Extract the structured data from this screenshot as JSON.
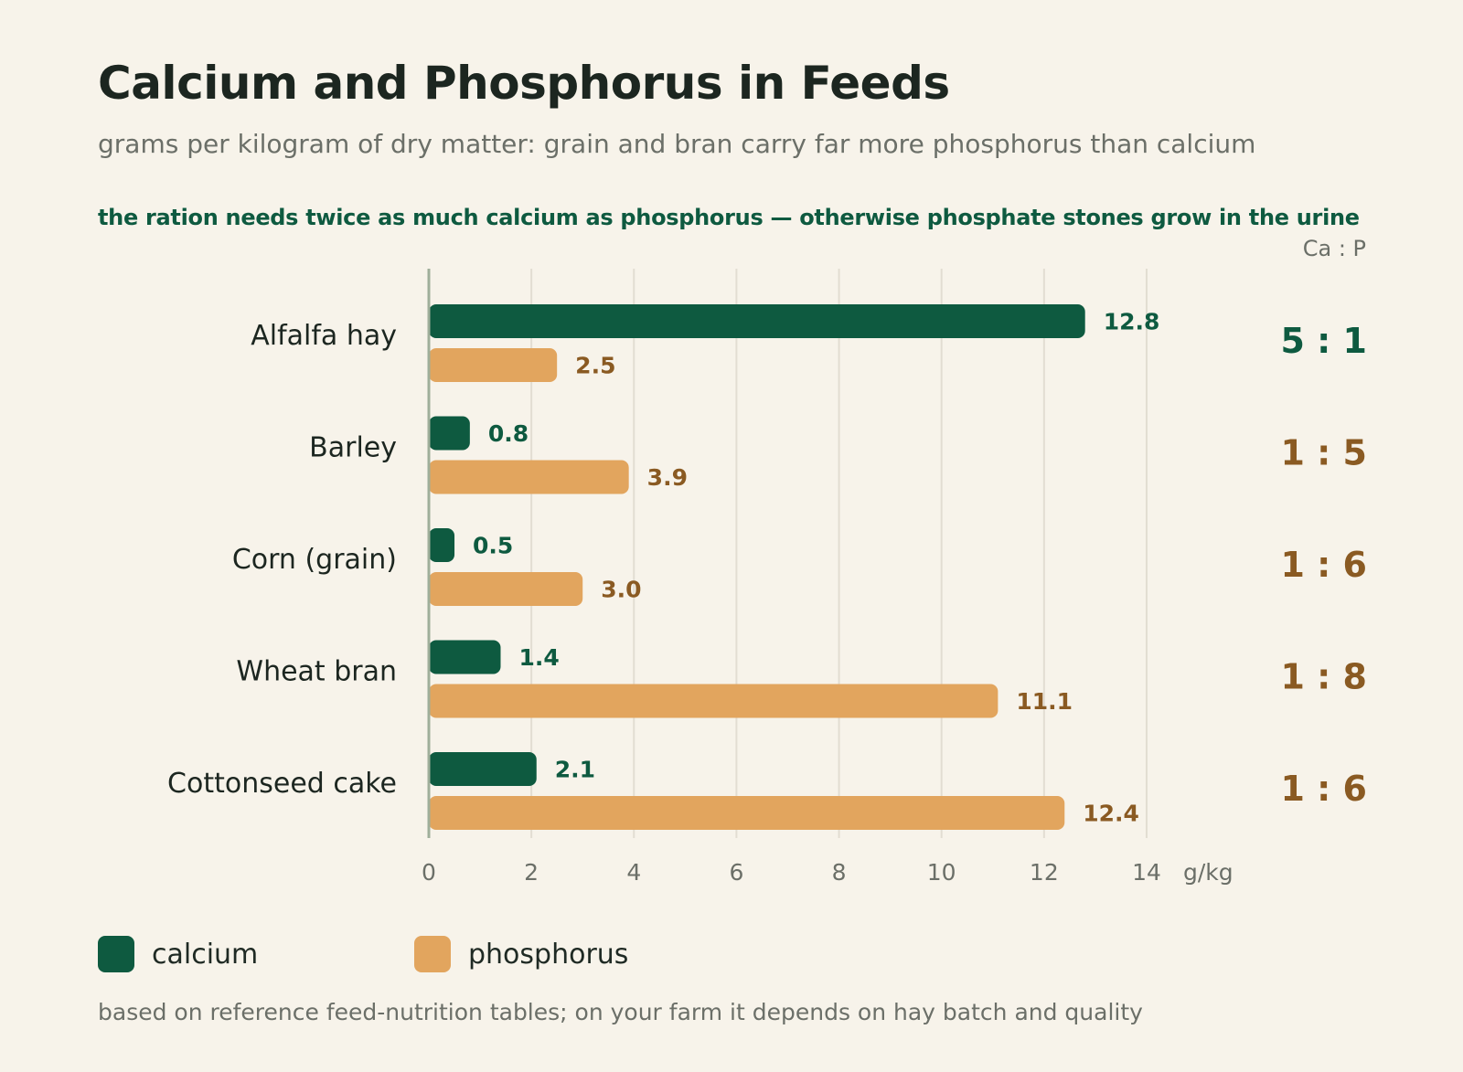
{
  "title": "Calcium and Phosphorus in Feeds",
  "subtitle": "grams per kilogram of dry matter: grain and bran carry far more phosphorus than calcium",
  "annotation": "the ration needs twice as much calcium as phosphorus — otherwise phosphate stones grow in the urine",
  "ratio_header": "Ca : P",
  "footnote": "based on reference feed-nutrition tables; on your farm it depends on hay batch and quality",
  "colors": {
    "calcium": "#0e5a40",
    "phosphorus": "#e2a55e",
    "phosphorus_text": "#8a5a22",
    "grid": "#e2ddd2",
    "axis": "#9fae9a"
  },
  "legend": [
    {
      "name": "calcium",
      "color": "#0e5a40"
    },
    {
      "name": "phosphorus",
      "color": "#e2a55e"
    }
  ],
  "chart_data": {
    "type": "bar",
    "orientation": "horizontal",
    "categories": [
      "Alfalfa hay",
      "Barley",
      "Corn (grain)",
      "Wheat bran",
      "Cottonseed cake"
    ],
    "series": [
      {
        "name": "calcium",
        "values": [
          12.8,
          0.8,
          0.5,
          1.4,
          2.1
        ],
        "labels": [
          "12.8",
          "0.8",
          "0.5",
          "1.4",
          "2.1"
        ]
      },
      {
        "name": "phosphorus",
        "values": [
          2.5,
          3.9,
          3.0,
          11.1,
          12.4
        ],
        "labels": [
          "2.5",
          "3.9",
          "3.0",
          "11.1",
          "12.4"
        ]
      }
    ],
    "ratios": [
      "5 : 1",
      "1 : 5",
      "1 : 6",
      "1 : 8",
      "1 : 6"
    ],
    "x_ticks": [
      "0",
      "2",
      "4",
      "6",
      "8",
      "10",
      "12",
      "14"
    ],
    "x_unit": "g/kg",
    "xlim": [
      0,
      14
    ],
    "grid": true,
    "legend_position": "bottom-left"
  }
}
